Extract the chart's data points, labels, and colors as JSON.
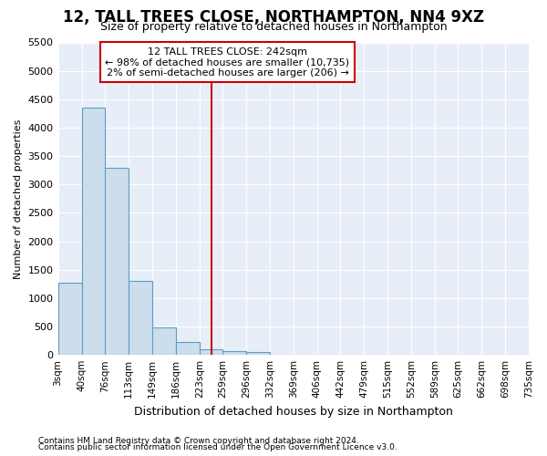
{
  "title": "12, TALL TREES CLOSE, NORTHAMPTON, NN4 9XZ",
  "subtitle": "Size of property relative to detached houses in Northampton",
  "xlabel": "Distribution of detached houses by size in Northampton",
  "ylabel": "Number of detached properties",
  "footnote1": "Contains HM Land Registry data © Crown copyright and database right 2024.",
  "footnote2": "Contains public sector information licensed under the Open Government Licence v3.0.",
  "annotation_line1": "12 TALL TREES CLOSE: 242sqm",
  "annotation_line2": "← 98% of detached houses are smaller (10,735)",
  "annotation_line3": "2% of semi-detached houses are larger (206) →",
  "bar_color": "#ccdded",
  "bar_edge_color": "#5b9fc4",
  "vline_color": "#cc0000",
  "vline_x": 242,
  "ylim": [
    0,
    5500
  ],
  "bin_edges": [
    3,
    40,
    76,
    113,
    149,
    186,
    223,
    259,
    296,
    332,
    369,
    406,
    442,
    479,
    515,
    552,
    589,
    625,
    662,
    698,
    735
  ],
  "bin_labels": [
    "3sqm",
    "40sqm",
    "76sqm",
    "113sqm",
    "149sqm",
    "186sqm",
    "223sqm",
    "259sqm",
    "296sqm",
    "332sqm",
    "369sqm",
    "406sqm",
    "442sqm",
    "479sqm",
    "515sqm",
    "552sqm",
    "589sqm",
    "625sqm",
    "662sqm",
    "698sqm",
    "735sqm"
  ],
  "bar_heights": [
    1270,
    4350,
    3300,
    1300,
    480,
    230,
    100,
    75,
    50,
    0,
    0,
    0,
    0,
    0,
    0,
    0,
    0,
    0,
    0,
    0
  ],
  "bg_color": "#ffffff",
  "plot_bg_color": "#e8eef8",
  "grid_color": "#ffffff",
  "title_fontsize": 12,
  "subtitle_fontsize": 9,
  "ylabel_fontsize": 8,
  "xlabel_fontsize": 9
}
